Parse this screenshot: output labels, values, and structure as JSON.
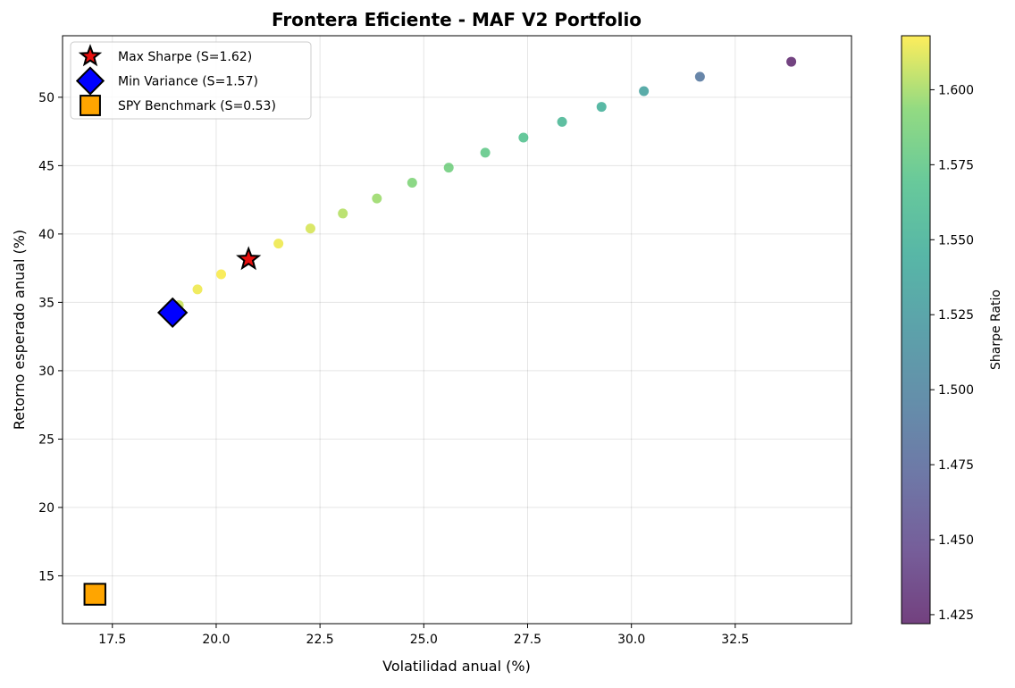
{
  "chart_data": {
    "type": "scatter",
    "title": "Frontera Eficiente - MAF V2 Portfolio",
    "xlabel": "Volatilidad anual (%)",
    "ylabel": "Retorno esperado anual (%)",
    "xlim": [
      16.3,
      35.3
    ],
    "ylim": [
      11.5,
      54.5
    ],
    "xticks": [
      17.5,
      20.0,
      22.5,
      25.0,
      27.5,
      30.0,
      32.5
    ],
    "xtick_labels": [
      "17.5",
      "20.0",
      "22.5",
      "25.0",
      "27.5",
      "30.0",
      "32.5"
    ],
    "yticks": [
      15,
      20,
      25,
      30,
      35,
      40,
      45,
      50
    ],
    "ytick_labels": [
      "15",
      "20",
      "25",
      "30",
      "35",
      "40",
      "45",
      "50"
    ],
    "grid": true,
    "legend_position": "top-left",
    "colorbar": {
      "label": "Sharpe Ratio",
      "colormap": "viridis",
      "range": [
        1.422,
        1.618
      ],
      "ticks": [
        1.425,
        1.45,
        1.475,
        1.5,
        1.525,
        1.55,
        1.575,
        1.6
      ],
      "tick_labels": [
        "1.425",
        "1.450",
        "1.475",
        "1.500",
        "1.525",
        "1.550",
        "1.575",
        "1.600"
      ]
    },
    "frontier_points": [
      {
        "x": 19.1,
        "y": 34.8,
        "sharpe": 1.607
      },
      {
        "x": 19.55,
        "y": 35.95,
        "sharpe": 1.615
      },
      {
        "x": 20.12,
        "y": 37.05,
        "sharpe": 1.617
      },
      {
        "x": 20.78,
        "y": 38.15,
        "sharpe": 1.618
      },
      {
        "x": 21.5,
        "y": 39.3,
        "sharpe": 1.615
      },
      {
        "x": 22.27,
        "y": 40.4,
        "sharpe": 1.61
      },
      {
        "x": 23.05,
        "y": 41.5,
        "sharpe": 1.603
      },
      {
        "x": 23.87,
        "y": 42.6,
        "sharpe": 1.598
      },
      {
        "x": 24.72,
        "y": 43.75,
        "sharpe": 1.59
      },
      {
        "x": 25.6,
        "y": 44.85,
        "sharpe": 1.583
      },
      {
        "x": 26.48,
        "y": 45.95,
        "sharpe": 1.575
      },
      {
        "x": 27.4,
        "y": 47.05,
        "sharpe": 1.567
      },
      {
        "x": 28.33,
        "y": 48.2,
        "sharpe": 1.556
      },
      {
        "x": 29.28,
        "y": 49.3,
        "sharpe": 1.547
      },
      {
        "x": 30.3,
        "y": 50.45,
        "sharpe": 1.532
      },
      {
        "x": 31.65,
        "y": 51.5,
        "sharpe": 1.487
      },
      {
        "x": 33.85,
        "y": 52.6,
        "sharpe": 1.424
      }
    ],
    "special_points": [
      {
        "label": "Max Sharpe (S=1.62)",
        "x": 20.78,
        "y": 38.15,
        "marker": "star",
        "color": "#e8100f"
      },
      {
        "label": "Min Variance (S=1.57)",
        "x": 18.95,
        "y": 34.25,
        "marker": "diamond",
        "color": "#0000ff"
      },
      {
        "label": "SPY Benchmark (S=0.53)",
        "x": 17.08,
        "y": 13.65,
        "marker": "square",
        "color": "#ffa500"
      }
    ]
  }
}
